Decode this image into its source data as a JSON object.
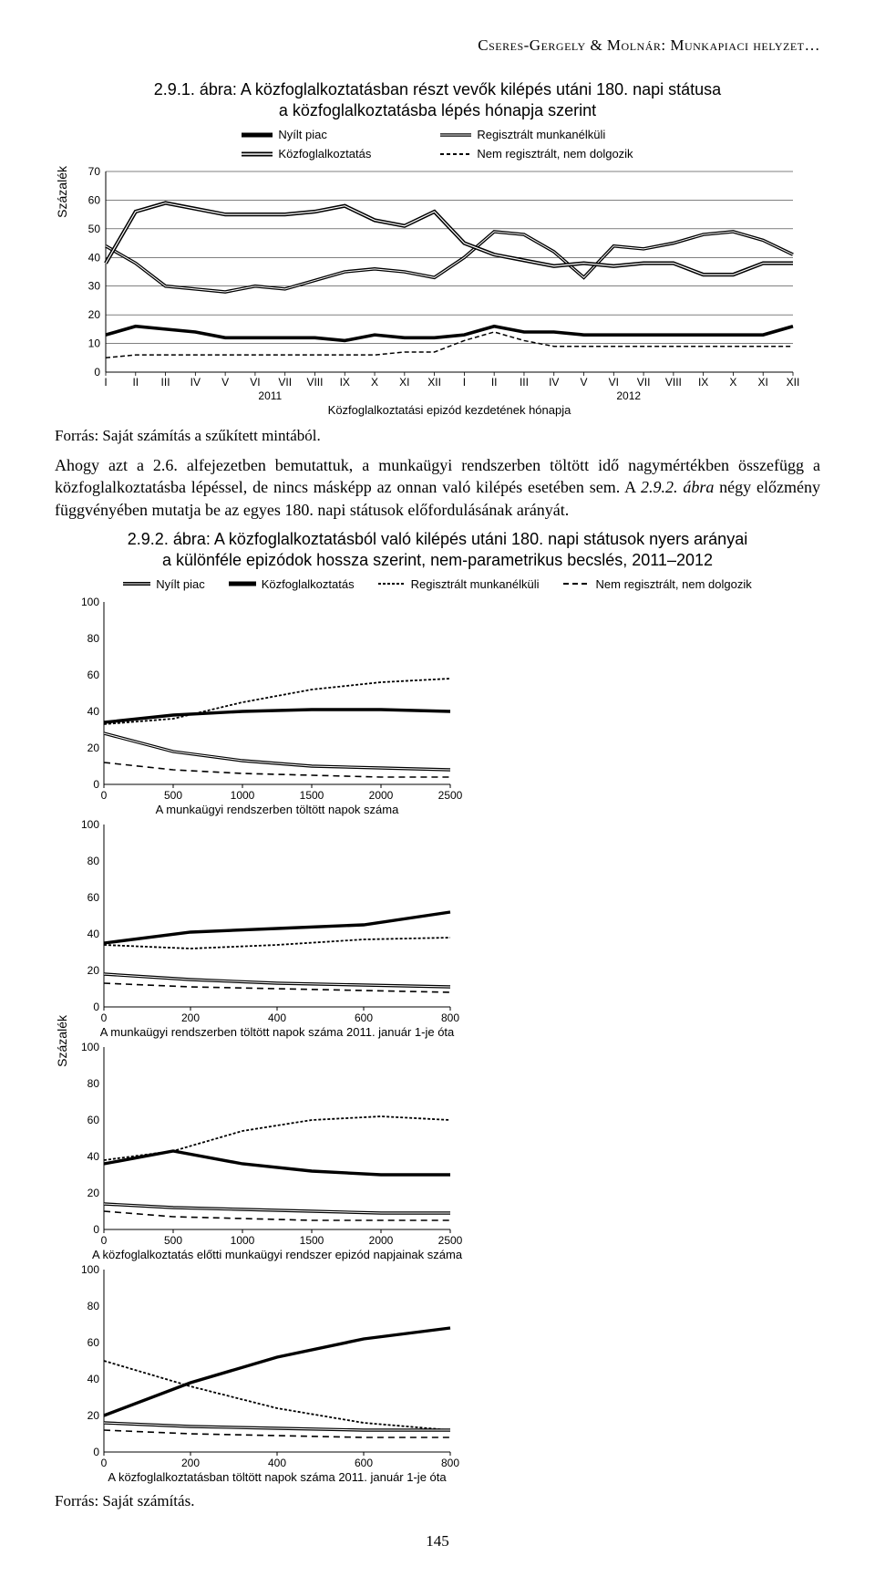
{
  "running_head": "Cseres-Gergely & Molnár: Munkapiaci helyzet…",
  "page_number": "145",
  "fig1": {
    "title_line1": "2.9.1. ábra: A közfoglalkoztatásban részt vevők kilépés utáni 180. napi státusa",
    "title_line2": "a közfoglalkoztatásba lépés hónapja szerint",
    "ylabel": "Százalék",
    "x_caption": "Közfoglalkoztatási epizód kezdetének hónapja",
    "year_a": "2011",
    "year_b": "2012",
    "legend": {
      "nyilt": "Nyílt piac",
      "kozf": "Közfoglalkoztatás",
      "reg": "Regisztrált munkanélküli",
      "nem": "Nem regisztrált, nem dolgozik"
    },
    "months": [
      "I",
      "II",
      "III",
      "IV",
      "V",
      "VI",
      "VII",
      "VIII",
      "IX",
      "X",
      "XI",
      "XII",
      "I",
      "II",
      "III",
      "IV",
      "V",
      "VI",
      "VII",
      "VIII",
      "IX",
      "X",
      "XI",
      "XII"
    ],
    "y_ticks": [
      0,
      10,
      20,
      30,
      40,
      50,
      60,
      70
    ],
    "y_lim": [
      0,
      70
    ],
    "series": {
      "reg": {
        "color": "#000",
        "stroke_width": 2.2,
        "style": "double-white",
        "data": [
          44,
          38,
          30,
          29,
          28,
          30,
          29,
          32,
          35,
          36,
          35,
          33,
          40,
          49,
          48,
          42,
          33,
          44,
          43,
          45,
          48,
          49,
          46,
          41
        ]
      },
      "kozf": {
        "color": "#000",
        "stroke_width": 1.8,
        "style": "double-white",
        "data": [
          38,
          56,
          59,
          57,
          55,
          55,
          55,
          56,
          58,
          53,
          51,
          56,
          45,
          41,
          39,
          37,
          38,
          37,
          38,
          38,
          34,
          34,
          38,
          38
        ]
      },
      "nyilt": {
        "color": "#000",
        "stroke_width": 3.2,
        "style": "solid",
        "data": [
          13,
          16,
          15,
          14,
          12,
          12,
          12,
          12,
          11,
          13,
          12,
          12,
          13,
          16,
          14,
          14,
          13,
          13,
          13,
          13,
          13,
          13,
          13,
          16
        ]
      },
      "nem": {
        "color": "#000",
        "stroke_width": 1.5,
        "style": "dashed",
        "data": [
          5,
          6,
          6,
          6,
          6,
          6,
          6,
          6,
          6,
          6,
          7,
          7,
          11,
          14,
          11,
          9,
          9,
          9,
          9,
          9,
          9,
          9,
          9,
          9
        ]
      }
    },
    "source": "Forrás: Saját számítás a szűkített mintából."
  },
  "body_text": {
    "p1": "Ahogy azt a 2.6. alfejezetben bemutattuk, a munkaügyi rendszerben töltött idő nagymértékben összefügg a közfoglalkoztatásba lépéssel, de nincs másképp az onnan való kilépés esetében sem. A ",
    "p1_em": "2.9.2. ábra",
    "p1_tail": " négy előzmény függvényében mutatja be az egyes 180. napi státusok előfordulásának arányát."
  },
  "fig2": {
    "title_line1": "2.9.2. ábra: A közfoglalkoztatásból való kilépés utáni 180. napi státusok nyers arányai",
    "title_line2": "a különféle epizódok hossza szerint, nem-parametrikus becslés, 2011–2012",
    "ylabel": "Százalék",
    "legend": {
      "nyilt": "Nyílt piac",
      "kozf": "Közfoglalkoztatás",
      "reg": "Regisztrált munkanélküli",
      "nem": "Nem regisztrált, nem dolgozik"
    },
    "panels": [
      {
        "xlim": [
          0,
          2500
        ],
        "xticks": [
          0,
          500,
          1000,
          1500,
          2000,
          2500
        ],
        "xlabel": "A munkaügyi rendszerben töltött napok száma",
        "reg": [
          33,
          36,
          45,
          52,
          56,
          58
        ],
        "kozf": [
          34,
          38,
          40,
          41,
          41,
          40
        ],
        "nyilt": [
          28,
          18,
          13,
          10,
          9,
          8
        ],
        "nem": [
          12,
          8,
          6,
          5,
          4,
          4
        ]
      },
      {
        "xlim": [
          0,
          800
        ],
        "xticks": [
          0,
          200,
          400,
          600,
          800
        ],
        "xlabel": "A munkaügyi rendszerben töltött napok száma 2011. január 1-je óta",
        "reg": [
          34,
          32,
          34,
          37,
          38
        ],
        "kozf": [
          35,
          41,
          43,
          45,
          52
        ],
        "nyilt": [
          18,
          15,
          13,
          12,
          11
        ],
        "nem": [
          13,
          11,
          10,
          9,
          8
        ]
      },
      {
        "xlim": [
          0,
          2500
        ],
        "xticks": [
          0,
          500,
          1000,
          1500,
          2000,
          2500
        ],
        "xlabel": "A közfoglalkoztatás előtti munkaügyi rendszer epizód napjainak száma",
        "reg": [
          38,
          43,
          54,
          60,
          62,
          60
        ],
        "kozf": [
          36,
          43,
          36,
          32,
          30,
          30
        ],
        "nyilt": [
          14,
          12,
          11,
          10,
          9,
          9
        ],
        "nem": [
          10,
          7,
          6,
          5,
          5,
          5
        ]
      },
      {
        "xlim": [
          0,
          800
        ],
        "xticks": [
          0,
          200,
          400,
          600,
          800
        ],
        "xlabel": "A közfoglalkoztatásban töltött napok száma 2011. január 1-je óta",
        "reg": [
          50,
          36,
          24,
          16,
          12
        ],
        "kozf": [
          20,
          38,
          52,
          62,
          68
        ],
        "nyilt": [
          16,
          14,
          13,
          12,
          12
        ],
        "nem": [
          12,
          10,
          9,
          8,
          8
        ]
      }
    ],
    "y_ticks": [
      0,
      20,
      40,
      60,
      80,
      100
    ],
    "y_lim": [
      0,
      100
    ],
    "source": "Forrás: Saját számítás."
  },
  "styling": {
    "grid_color": "#000",
    "grid_width": 0.5,
    "axis_width": 1.0,
    "bg": "#ffffff"
  }
}
